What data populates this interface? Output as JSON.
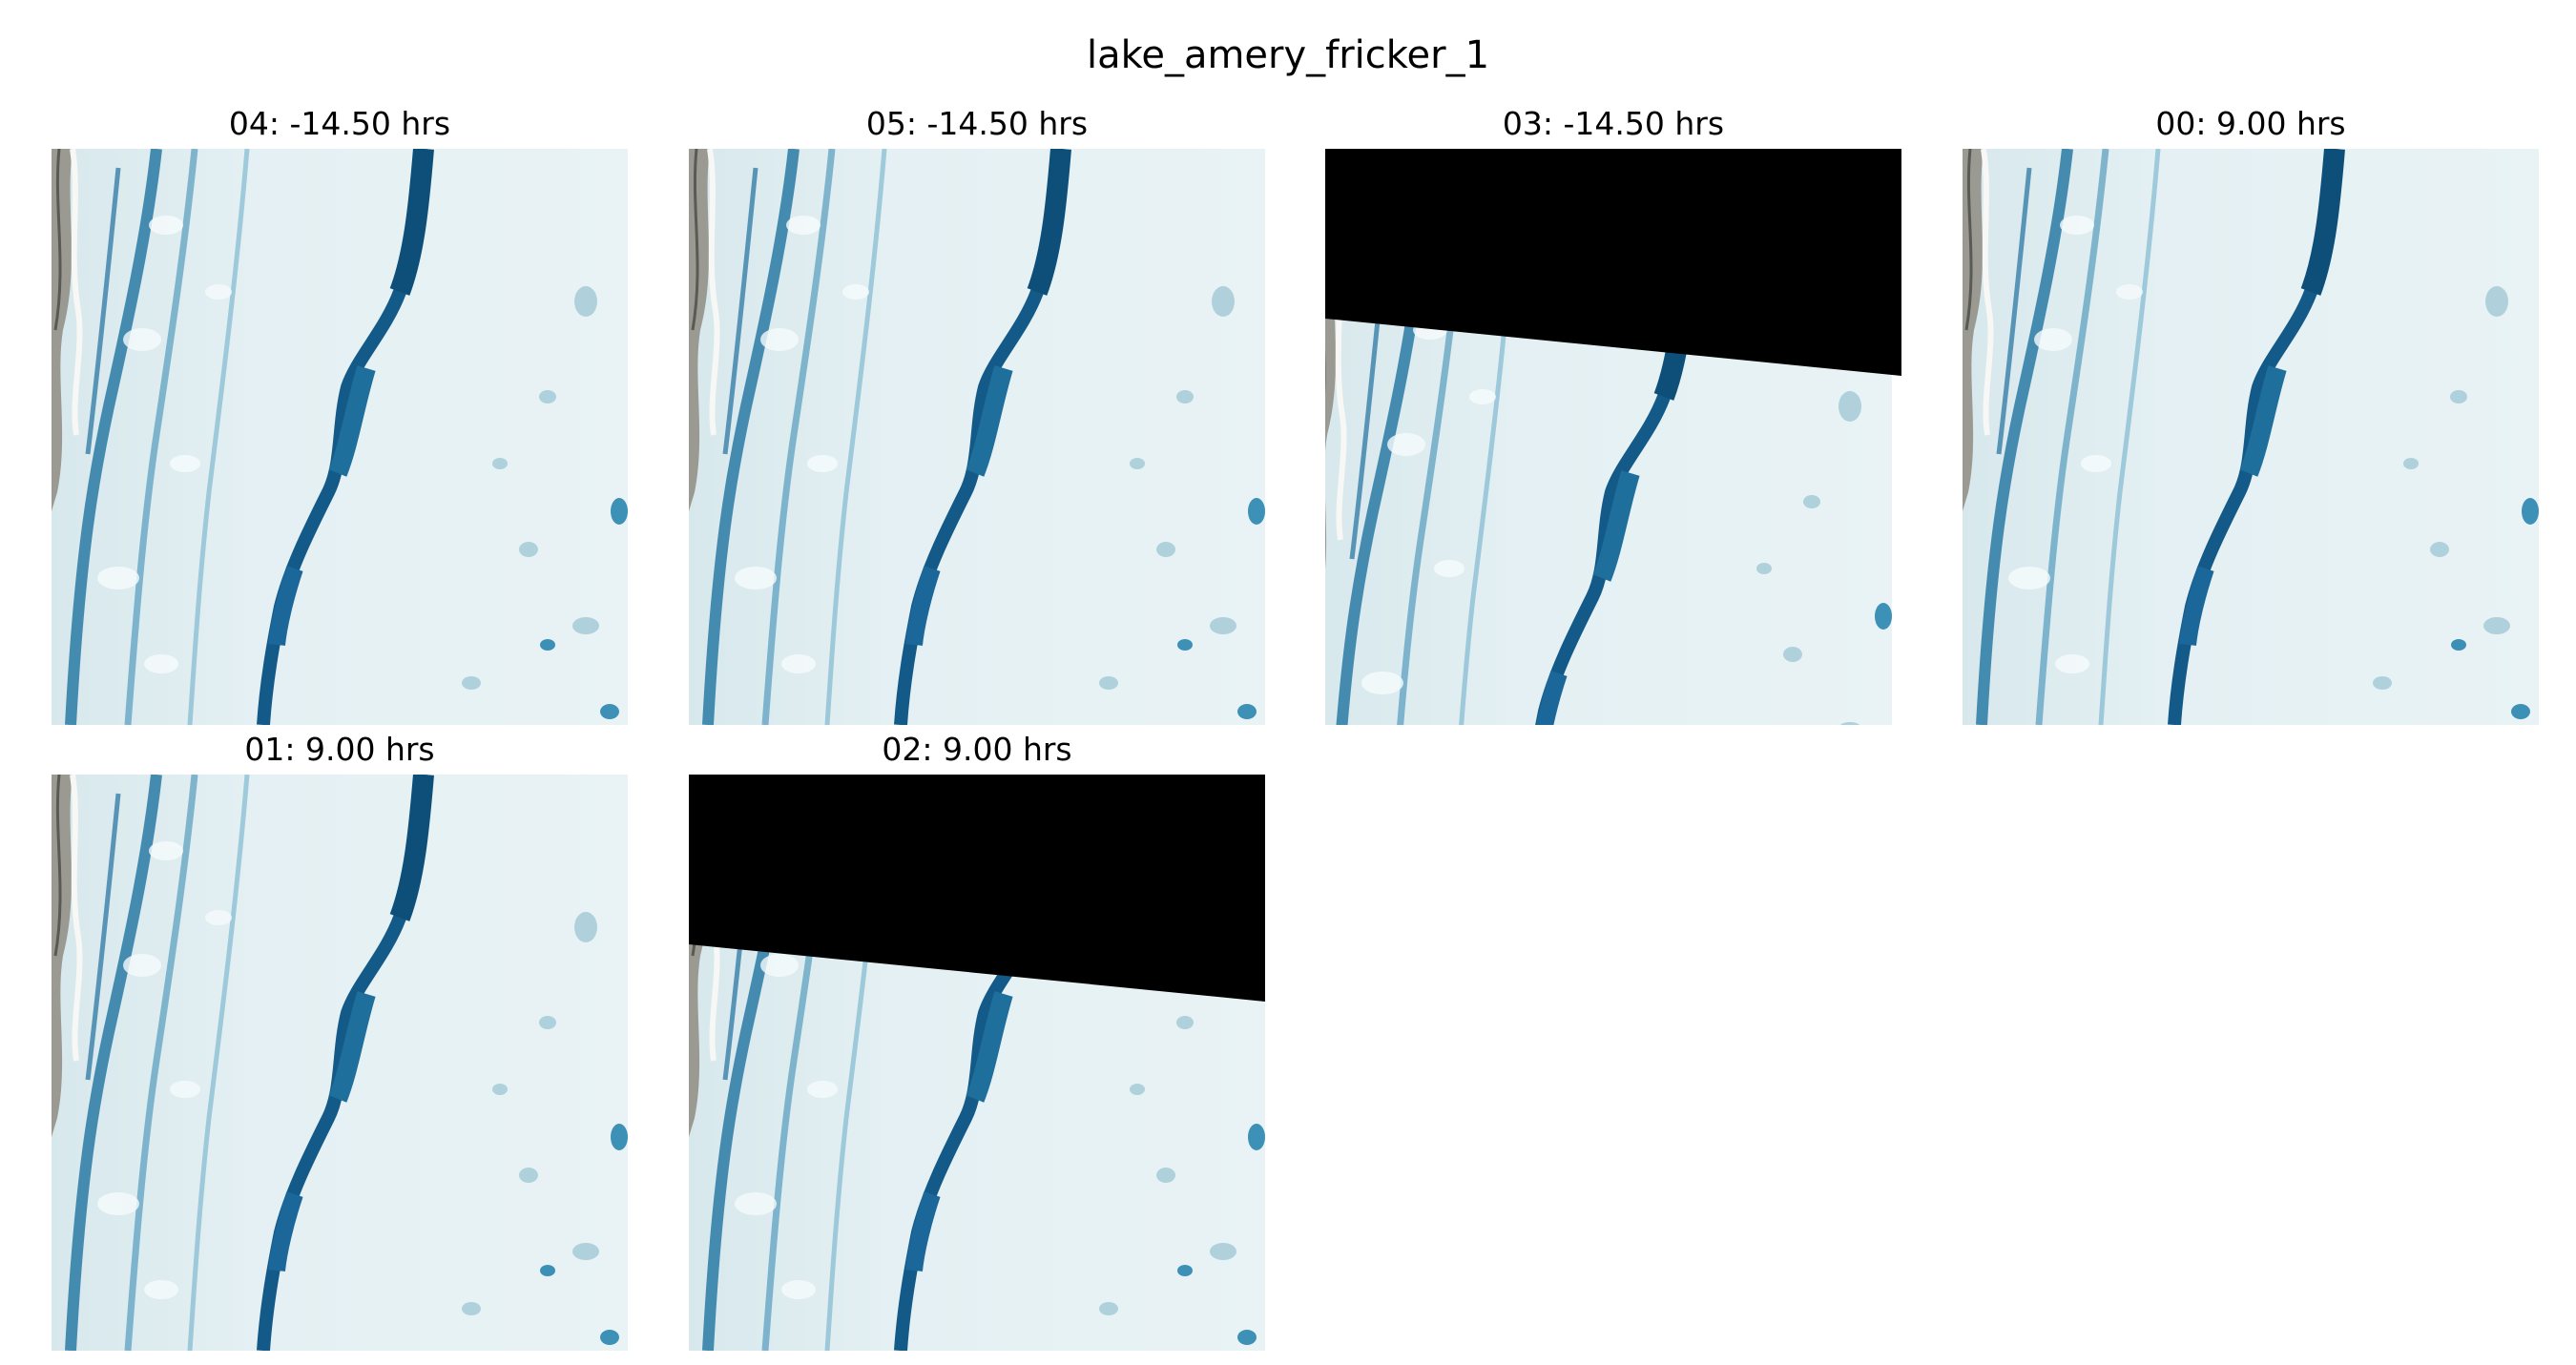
{
  "figure_title": "lake_amery_fricker_1",
  "panels": [
    {
      "id": "04",
      "title": "04: -14.50 hrs",
      "nodata_cover": false
    },
    {
      "id": "05",
      "title": "05: -14.50 hrs",
      "nodata_cover": false
    },
    {
      "id": "03",
      "title": "03: -14.50 hrs",
      "nodata_cover": true
    },
    {
      "id": "00",
      "title": "00: 9.00 hrs",
      "nodata_cover": false
    },
    {
      "id": "01",
      "title": "01: 9.00 hrs",
      "nodata_cover": false
    },
    {
      "id": "02",
      "title": "02: 9.00 hrs",
      "nodata_cover": true
    }
  ],
  "colors": {
    "ice": "#dfeef1",
    "ice_bright": "#f4fafb",
    "meltwater": "#1f6f9c",
    "meltwater_dark": "#0e4f7a",
    "pond": "#8fbfcf",
    "rock": "#8a8a84",
    "nodata": "#000000"
  }
}
